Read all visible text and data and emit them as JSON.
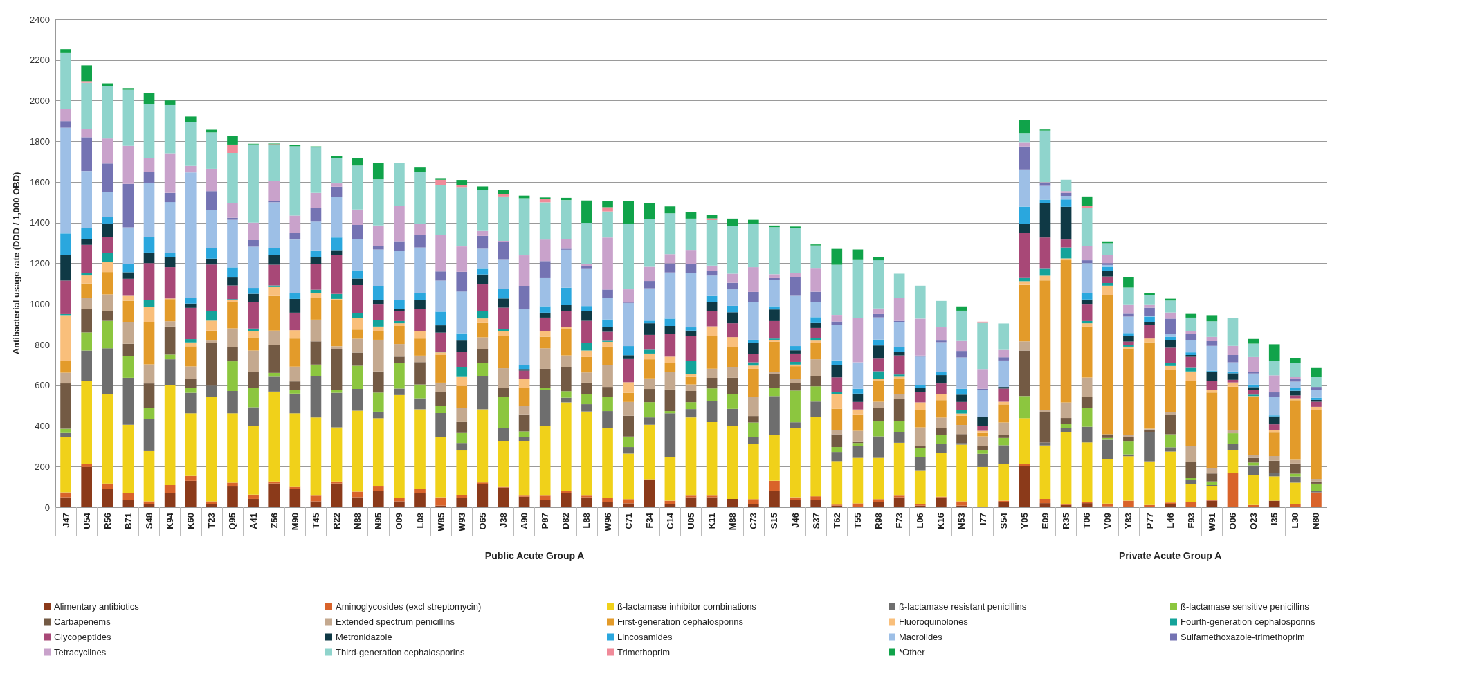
{
  "chart_data": {
    "type": "bar",
    "ylabel": "Antibacterial usage rate (DDD / 1,000 OBD)",
    "stacked": true,
    "grid": "y",
    "legend": "bottom",
    "ylim": [
      0,
      2400
    ],
    "yticks": [
      0,
      200,
      400,
      600,
      800,
      1000,
      1200,
      1400,
      1600,
      1800,
      2000,
      2200,
      2400
    ],
    "annotations": [
      "Public Acute Group A",
      "Private Acute Group A"
    ],
    "categories": [
      "J47",
      "U54",
      "R56",
      "B71",
      "S48",
      "K94",
      "K60",
      "T23",
      "Q95",
      "A41",
      "Z56",
      "M90",
      "T45",
      "R22",
      "N88",
      "N95",
      "O09",
      "L08",
      "W85",
      "W93",
      "O65",
      "J38",
      "A90",
      "P87",
      "D82",
      "L88",
      "W96",
      "C71",
      "F34",
      "C14",
      "U05",
      "K11",
      "M88",
      "C73",
      "S15",
      "J46",
      "S37",
      "T62",
      "T55",
      "R98",
      "F73",
      "L06",
      "K16",
      "N53",
      "I77",
      "S54",
      "Y05",
      "E09",
      "R35",
      "T06",
      "V09",
      "Y83",
      "P77",
      "L46",
      "F93",
      "W91",
      "O06",
      "O23",
      "I35",
      "L30",
      "N80"
    ],
    "series": [
      {
        "name": "Alimentary antibiotics",
        "color": "#8b3a1a",
        "values": [
          49,
          198,
          89,
          36,
          16,
          70,
          130,
          16,
          102,
          41,
          117,
          89,
          29,
          117,
          49,
          81,
          29,
          68,
          8,
          45,
          114,
          97,
          52,
          36,
          70,
          49,
          24,
          19,
          133,
          16,
          49,
          49,
          41,
          16,
          81,
          36,
          36,
          8,
          3,
          24,
          49,
          8,
          49,
          8,
          3,
          24,
          202,
          20,
          11,
          20,
          5,
          0,
          0,
          14,
          0,
          32,
          0,
          0,
          32,
          0,
          0
        ]
      },
      {
        "name": "Aminoglycosides (excl streptomycin)",
        "color": "#d9632a",
        "values": [
          24,
          13,
          28,
          34,
          13,
          39,
          24,
          13,
          19,
          21,
          10,
          11,
          28,
          10,
          28,
          21,
          16,
          21,
          41,
          16,
          8,
          3,
          5,
          21,
          11,
          8,
          24,
          21,
          5,
          16,
          8,
          8,
          0,
          24,
          49,
          13,
          18,
          5,
          16,
          16,
          8,
          8,
          3,
          21,
          0,
          8,
          9,
          21,
          4,
          7,
          13,
          32,
          11,
          9,
          27,
          4,
          167,
          11,
          0,
          14,
          73
        ]
      },
      {
        "name": "ß-lactamase inhibitor combinations",
        "color": "#f0d11a",
        "values": [
          271,
          411,
          438,
          336,
          247,
          492,
          308,
          515,
          341,
          339,
          442,
          362,
          385,
          266,
          398,
          336,
          507,
          393,
          297,
          218,
          360,
          224,
          268,
          344,
          435,
          414,
          341,
          224,
          268,
          214,
          385,
          362,
          360,
          273,
          227,
          341,
          390,
          214,
          224,
          203,
          260,
          166,
          216,
          279,
          195,
          179,
          227,
          263,
          353,
          292,
          217,
          219,
          215,
          251,
          86,
          68,
          113,
          147,
          120,
          107,
          0
        ]
      },
      {
        "name": "ß-lactamase resistant penicillins",
        "color": "#6e6e6e",
        "values": [
          21,
          149,
          227,
          231,
          157,
          127,
          101,
          54,
          110,
          91,
          73,
          97,
          203,
          170,
          107,
          32,
          32,
          54,
          117,
          37,
          164,
          65,
          19,
          175,
          23,
          36,
          84,
          32,
          36,
          216,
          41,
          104,
          83,
          31,
          190,
          28,
          76,
          45,
          57,
          106,
          54,
          65,
          45,
          8,
          65,
          94,
          0,
          14,
          23,
          77,
          97,
          9,
          143,
          21,
          21,
          5,
          30,
          48,
          18,
          30,
          7
        ]
      },
      {
        "name": "ß-lactamase sensitive penicillins",
        "color": "#8cc63f",
        "values": [
          21,
          89,
          135,
          107,
          54,
          23,
          26,
          0,
          146,
          97,
          19,
          19,
          57,
          13,
          114,
          94,
          125,
          68,
          37,
          49,
          63,
          154,
          29,
          11,
          32,
          49,
          70,
          52,
          75,
          11,
          34,
          62,
          73,
          73,
          42,
          156,
          75,
          24,
          16,
          73,
          52,
          45,
          44,
          0,
          16,
          36,
          109,
          0,
          18,
          93,
          9,
          63,
          0,
          64,
          9,
          18,
          54,
          14,
          0,
          14,
          36
        ]
      },
      {
        "name": "Carbapenems",
        "color": "#735a44",
        "values": [
          223,
          114,
          49,
          60,
          122,
          138,
          41,
          209,
          71,
          76,
          138,
          41,
          114,
          203,
          65,
          104,
          32,
          110,
          68,
          54,
          70,
          44,
          84,
          94,
          119,
          57,
          49,
          102,
          65,
          106,
          55,
          52,
          80,
          32,
          65,
          36,
          49,
          63,
          5,
          65,
          109,
          8,
          32,
          44,
          21,
          13,
          224,
          149,
          30,
          54,
          18,
          23,
          13,
          97,
          81,
          39,
          0,
          23,
          59,
          50,
          11
        ]
      },
      {
        "name": "Extended spectrum penicillins",
        "color": "#c4a98f",
        "values": [
          53,
          57,
          81,
          106,
          94,
          26,
          63,
          13,
          91,
          106,
          70,
          73,
          107,
          13,
          68,
          156,
          62,
          32,
          45,
          71,
          57,
          97,
          40,
          101,
          57,
          50,
          109,
          68,
          52,
          86,
          32,
          45,
          54,
          94,
          11,
          21,
          84,
          21,
          55,
          32,
          24,
          93,
          52,
          45,
          49,
          63,
          45,
          13,
          77,
          95,
          0,
          9,
          4,
          11,
          77,
          27,
          14,
          16,
          23,
          18,
          13
        ]
      },
      {
        "name": "First-generation cephalosporins",
        "color": "#e39b2a",
        "values": [
          60,
          70,
          110,
          106,
          209,
          109,
          99,
          49,
          128,
          65,
          170,
          138,
          106,
          230,
          45,
          44,
          89,
          84,
          138,
          106,
          70,
          159,
          90,
          57,
          130,
          76,
          89,
          45,
          94,
          45,
          37,
          159,
          97,
          138,
          149,
          63,
          81,
          105,
          81,
          106,
          75,
          86,
          86,
          45,
          16,
          89,
          278,
          636,
          699,
          251,
          686,
          426,
          426,
          210,
          322,
          371,
          215,
          283,
          115,
          294,
          340
        ]
      },
      {
        "name": "Fluoroquinolones",
        "color": "#f9bf7b",
        "values": [
          223,
          39,
          49,
          24,
          73,
          3,
          19,
          49,
          10,
          32,
          44,
          41,
          23,
          3,
          55,
          21,
          13,
          37,
          11,
          45,
          23,
          24,
          45,
          29,
          8,
          32,
          24,
          52,
          28,
          31,
          16,
          49,
          49,
          16,
          10,
          8,
          11,
          73,
          24,
          8,
          11,
          37,
          28,
          11,
          11,
          13,
          18,
          23,
          9,
          16,
          45,
          9,
          18,
          18,
          45,
          14,
          21,
          5,
          14,
          9,
          14
        ]
      },
      {
        "name": "Fourth-generation cephalosporins",
        "color": "#14a39a",
        "values": [
          5,
          13,
          44,
          0,
          34,
          0,
          16,
          49,
          6,
          11,
          8,
          0,
          18,
          24,
          24,
          32,
          11,
          0,
          3,
          49,
          37,
          8,
          0,
          0,
          0,
          37,
          5,
          0,
          19,
          0,
          62,
          0,
          0,
          16,
          6,
          13,
          13,
          8,
          0,
          36,
          11,
          0,
          0,
          16,
          0,
          0,
          16,
          34,
          54,
          11,
          13,
          7,
          0,
          13,
          18,
          0,
          0,
          7,
          0,
          0,
          0
        ]
      },
      {
        "name": "Glycopeptides",
        "color": "#a84877",
        "values": [
          165,
          138,
          78,
          84,
          182,
          154,
          154,
          227,
          67,
          130,
          102,
          86,
          128,
          192,
          140,
          76,
          49,
          109,
          94,
          76,
          130,
          107,
          40,
          65,
          81,
          109,
          44,
          114,
          73,
          110,
          122,
          76,
          68,
          41,
          86,
          41,
          49,
          73,
          37,
          62,
          94,
          52,
          54,
          41,
          24,
          65,
          220,
          154,
          39,
          81,
          32,
          18,
          68,
          77,
          54,
          45,
          13,
          23,
          27,
          14,
          25
        ]
      },
      {
        "name": "Metronidazole",
        "color": "#0f3945",
        "values": [
          127,
          28,
          68,
          32,
          52,
          49,
          21,
          29,
          39,
          41,
          49,
          68,
          34,
          24,
          32,
          24,
          11,
          42,
          36,
          54,
          49,
          45,
          8,
          24,
          28,
          49,
          24,
          19,
          57,
          41,
          28,
          45,
          54,
          54,
          57,
          16,
          24,
          60,
          41,
          65,
          19,
          19,
          41,
          36,
          45,
          8,
          45,
          170,
          161,
          25,
          27,
          29,
          13,
          36,
          9,
          45,
          32,
          14,
          39,
          23,
          9
        ]
      },
      {
        "name": "Lincosamides",
        "color": "#2aa7de",
        "values": [
          105,
          54,
          32,
          42,
          78,
          21,
          28,
          52,
          50,
          29,
          32,
          29,
          32,
          62,
          41,
          68,
          42,
          36,
          67,
          36,
          28,
          47,
          21,
          32,
          86,
          24,
          37,
          45,
          13,
          36,
          16,
          28,
          32,
          16,
          16,
          21,
          29,
          24,
          24,
          29,
          21,
          13,
          16,
          29,
          0,
          0,
          86,
          16,
          36,
          30,
          21,
          13,
          27,
          18,
          13,
          4,
          9,
          13,
          5,
          13,
          11
        ]
      },
      {
        "name": "Macrolides",
        "color": "#9dbfe6",
        "values": [
          520,
          281,
          122,
          179,
          265,
          250,
          617,
          187,
          234,
          203,
          226,
          263,
          141,
          201,
          153,
          179,
          242,
          224,
          153,
          205,
          99,
          143,
          275,
          138,
          187,
          182,
          106,
          211,
          159,
          227,
          268,
          101,
          81,
          185,
          130,
          247,
          76,
          175,
          130,
          109,
          122,
          141,
          146,
          154,
          133,
          130,
          183,
          68,
          18,
          149,
          9,
          81,
          5,
          14,
          59,
          122,
          45,
          54,
          90,
          32,
          39
        ]
      },
      {
        "name": "Sulfamethoxazole-trimethoprim",
        "color": "#7473b3",
        "values": [
          32,
          166,
          141,
          214,
          54,
          45,
          0,
          93,
          10,
          32,
          5,
          32,
          68,
          49,
          70,
          16,
          49,
          60,
          45,
          97,
          63,
          89,
          110,
          84,
          5,
          16,
          41,
          3,
          36,
          45,
          45,
          21,
          32,
          50,
          8,
          93,
          49,
          16,
          0,
          16,
          8,
          5,
          8,
          32,
          5,
          16,
          113,
          14,
          14,
          14,
          9,
          14,
          39,
          75,
          30,
          23,
          36,
          9,
          23,
          13,
          14
        ]
      },
      {
        "name": "Tetracyclines",
        "color": "#c9a2cb",
        "values": [
          62,
          41,
          123,
          187,
          68,
          195,
          32,
          110,
          71,
          86,
          101,
          86,
          73,
          16,
          76,
          102,
          175,
          57,
          179,
          125,
          24,
          5,
          153,
          106,
          47,
          8,
          256,
          65,
          70,
          45,
          68,
          28,
          45,
          122,
          19,
          21,
          114,
          32,
          216,
          28,
          114,
          182,
          65,
          49,
          97,
          36,
          21,
          4,
          9,
          70,
          41,
          43,
          13,
          30,
          14,
          21,
          45,
          72,
          84,
          9,
          0
        ]
      },
      {
        "name": "Third-generation cephalosporins",
        "color": "#8fd4cc",
        "values": [
          276,
          227,
          258,
          276,
          266,
          237,
          214,
          179,
          248,
          385,
          175,
          341,
          224,
          123,
          216,
          227,
          211,
          255,
          244,
          292,
          203,
          218,
          281,
          183,
          192,
          203,
          128,
          321,
          234,
          201,
          154,
          224,
          234,
          214,
          232,
          219,
          114,
          247,
          287,
          237,
          118,
          162,
          130,
          149,
          227,
          130,
          45,
          254,
          56,
          186,
          57,
          86,
          50,
          59,
          68,
          77,
          138,
          66,
          72,
          68,
          48
        ]
      },
      {
        "name": "Trimethoprim",
        "color": "#f08a99",
        "values": [
          0,
          8,
          0,
          0,
          0,
          0,
          0,
          0,
          41,
          0,
          5,
          0,
          0,
          0,
          0,
          0,
          0,
          0,
          28,
          11,
          0,
          13,
          0,
          16,
          0,
          0,
          21,
          0,
          0,
          0,
          0,
          8,
          0,
          0,
          0,
          0,
          0,
          0,
          0,
          0,
          0,
          0,
          0,
          0,
          6,
          0,
          0,
          0,
          0,
          13,
          0,
          0,
          0,
          0,
          0,
          0,
          0,
          0,
          0,
          0,
          0
        ]
      },
      {
        "name": "*Other",
        "color": "#10a34a",
        "values": [
          16,
          78,
          13,
          8,
          54,
          23,
          29,
          13,
          41,
          3,
          3,
          5,
          5,
          11,
          37,
          81,
          0,
          21,
          8,
          24,
          16,
          19,
          13,
          8,
          11,
          110,
          32,
          114,
          78,
          34,
          32,
          16,
          37,
          19,
          8,
          8,
          5,
          78,
          52,
          16,
          0,
          0,
          0,
          21,
          0,
          0,
          63,
          5,
          0,
          45,
          9,
          50,
          9,
          9,
          18,
          30,
          0,
          23,
          81,
          25,
          45
        ]
      }
    ]
  }
}
